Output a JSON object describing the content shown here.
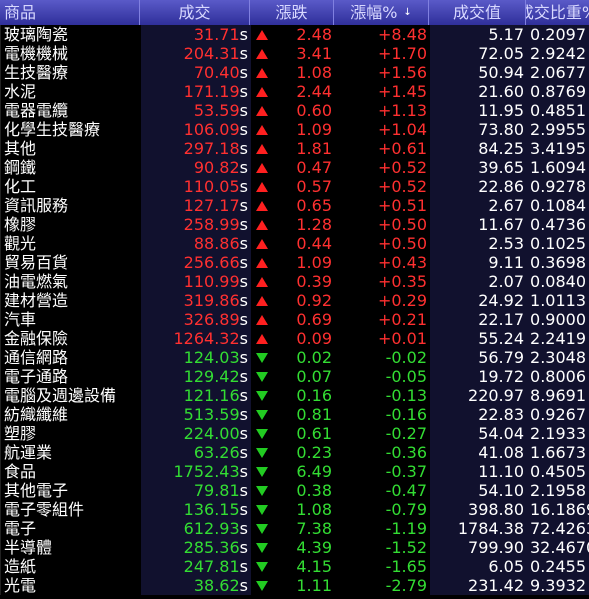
{
  "header": {
    "name": "商品",
    "price": "成交",
    "change": "漲跌",
    "pct": "漲幅%",
    "volume": "成交值",
    "ratio": "成交比重%",
    "sort_icon": "sort-desc-icon"
  },
  "rows": [
    {
      "name": "玻璃陶瓷",
      "price": "31.71",
      "change": "2.48",
      "pct": "+8.48",
      "volume": "5.17",
      "ratio": "0.2097",
      "dir": "up"
    },
    {
      "name": "電機機械",
      "price": "204.31",
      "change": "3.41",
      "pct": "+1.70",
      "volume": "72.05",
      "ratio": "2.9242",
      "dir": "up"
    },
    {
      "name": "生技醫療",
      "price": "70.40",
      "change": "1.08",
      "pct": "+1.56",
      "volume": "50.94",
      "ratio": "2.0677",
      "dir": "up"
    },
    {
      "name": "水泥",
      "price": "171.19",
      "change": "2.44",
      "pct": "+1.45",
      "volume": "21.60",
      "ratio": "0.8769",
      "dir": "up"
    },
    {
      "name": "電器電纜",
      "price": "53.59",
      "change": "0.60",
      "pct": "+1.13",
      "volume": "11.95",
      "ratio": "0.4851",
      "dir": "up"
    },
    {
      "name": "化學生技醫療",
      "price": "106.09",
      "change": "1.09",
      "pct": "+1.04",
      "volume": "73.80",
      "ratio": "2.9955",
      "dir": "up"
    },
    {
      "name": "其他",
      "price": "297.18",
      "change": "1.81",
      "pct": "+0.61",
      "volume": "84.25",
      "ratio": "3.4195",
      "dir": "up"
    },
    {
      "name": "鋼鐵",
      "price": "90.82",
      "change": "0.47",
      "pct": "+0.52",
      "volume": "39.65",
      "ratio": "1.6094",
      "dir": "up"
    },
    {
      "name": "化工",
      "price": "110.05",
      "change": "0.57",
      "pct": "+0.52",
      "volume": "22.86",
      "ratio": "0.9278",
      "dir": "up"
    },
    {
      "name": "資訊服務",
      "price": "127.17",
      "change": "0.65",
      "pct": "+0.51",
      "volume": "2.67",
      "ratio": "0.1084",
      "dir": "up"
    },
    {
      "name": "橡膠",
      "price": "258.99",
      "change": "1.28",
      "pct": "+0.50",
      "volume": "11.67",
      "ratio": "0.4736",
      "dir": "up"
    },
    {
      "name": "觀光",
      "price": "88.86",
      "change": "0.44",
      "pct": "+0.50",
      "volume": "2.53",
      "ratio": "0.1025",
      "dir": "up"
    },
    {
      "name": "貿易百貨",
      "price": "256.66",
      "change": "1.09",
      "pct": "+0.43",
      "volume": "9.11",
      "ratio": "0.3698",
      "dir": "up"
    },
    {
      "name": "油電燃氣",
      "price": "110.99",
      "change": "0.39",
      "pct": "+0.35",
      "volume": "2.07",
      "ratio": "0.0840",
      "dir": "up"
    },
    {
      "name": "建材營造",
      "price": "319.86",
      "change": "0.92",
      "pct": "+0.29",
      "volume": "24.92",
      "ratio": "1.0113",
      "dir": "up"
    },
    {
      "name": "汽車",
      "price": "326.89",
      "change": "0.69",
      "pct": "+0.21",
      "volume": "22.17",
      "ratio": "0.9000",
      "dir": "up"
    },
    {
      "name": "金融保險",
      "price": "1264.32",
      "change": "0.09",
      "pct": "+0.01",
      "volume": "55.24",
      "ratio": "2.2419",
      "dir": "up"
    },
    {
      "name": "通信網路",
      "price": "124.03",
      "change": "0.02",
      "pct": "-0.02",
      "volume": "56.79",
      "ratio": "2.3048",
      "dir": "down"
    },
    {
      "name": "電子通路",
      "price": "129.42",
      "change": "0.07",
      "pct": "-0.05",
      "volume": "19.72",
      "ratio": "0.8006",
      "dir": "down"
    },
    {
      "name": "電腦及週邊設備",
      "price": "121.16",
      "change": "0.16",
      "pct": "-0.13",
      "volume": "220.97",
      "ratio": "8.9691",
      "dir": "down"
    },
    {
      "name": "紡織纖維",
      "price": "513.59",
      "change": "0.81",
      "pct": "-0.16",
      "volume": "22.83",
      "ratio": "0.9267",
      "dir": "down"
    },
    {
      "name": "塑膠",
      "price": "224.00",
      "change": "0.61",
      "pct": "-0.27",
      "volume": "54.04",
      "ratio": "2.1933",
      "dir": "down"
    },
    {
      "name": "航運業",
      "price": "63.26",
      "change": "0.23",
      "pct": "-0.36",
      "volume": "41.08",
      "ratio": "1.6673",
      "dir": "down"
    },
    {
      "name": "食品",
      "price": "1752.43",
      "change": "6.49",
      "pct": "-0.37",
      "volume": "11.10",
      "ratio": "0.4505",
      "dir": "down"
    },
    {
      "name": "其他電子",
      "price": "79.81",
      "change": "0.38",
      "pct": "-0.47",
      "volume": "54.10",
      "ratio": "2.1958",
      "dir": "down"
    },
    {
      "name": "電子零組件",
      "price": "136.15",
      "change": "1.08",
      "pct": "-0.79",
      "volume": "398.80",
      "ratio": "16.1869",
      "dir": "down"
    },
    {
      "name": "電子",
      "price": "612.93",
      "change": "7.38",
      "pct": "-1.19",
      "volume": "1784.38",
      "ratio": "72.4263",
      "dir": "down"
    },
    {
      "name": "半導體",
      "price": "285.36",
      "change": "4.39",
      "pct": "-1.52",
      "volume": "799.90",
      "ratio": "32.4670",
      "dir": "down"
    },
    {
      "name": "造紙",
      "price": "247.81",
      "change": "4.15",
      "pct": "-1.65",
      "volume": "6.05",
      "ratio": "0.2455",
      "dir": "down"
    },
    {
      "name": "光電",
      "price": "38.62",
      "change": "1.11",
      "pct": "-2.79",
      "volume": "231.42",
      "ratio": "9.3932",
      "dir": "down"
    }
  ],
  "price_suffix": "s",
  "colors": {
    "up": "#ff3030",
    "down": "#33dd33",
    "header_bg": "#3a3aa8"
  }
}
